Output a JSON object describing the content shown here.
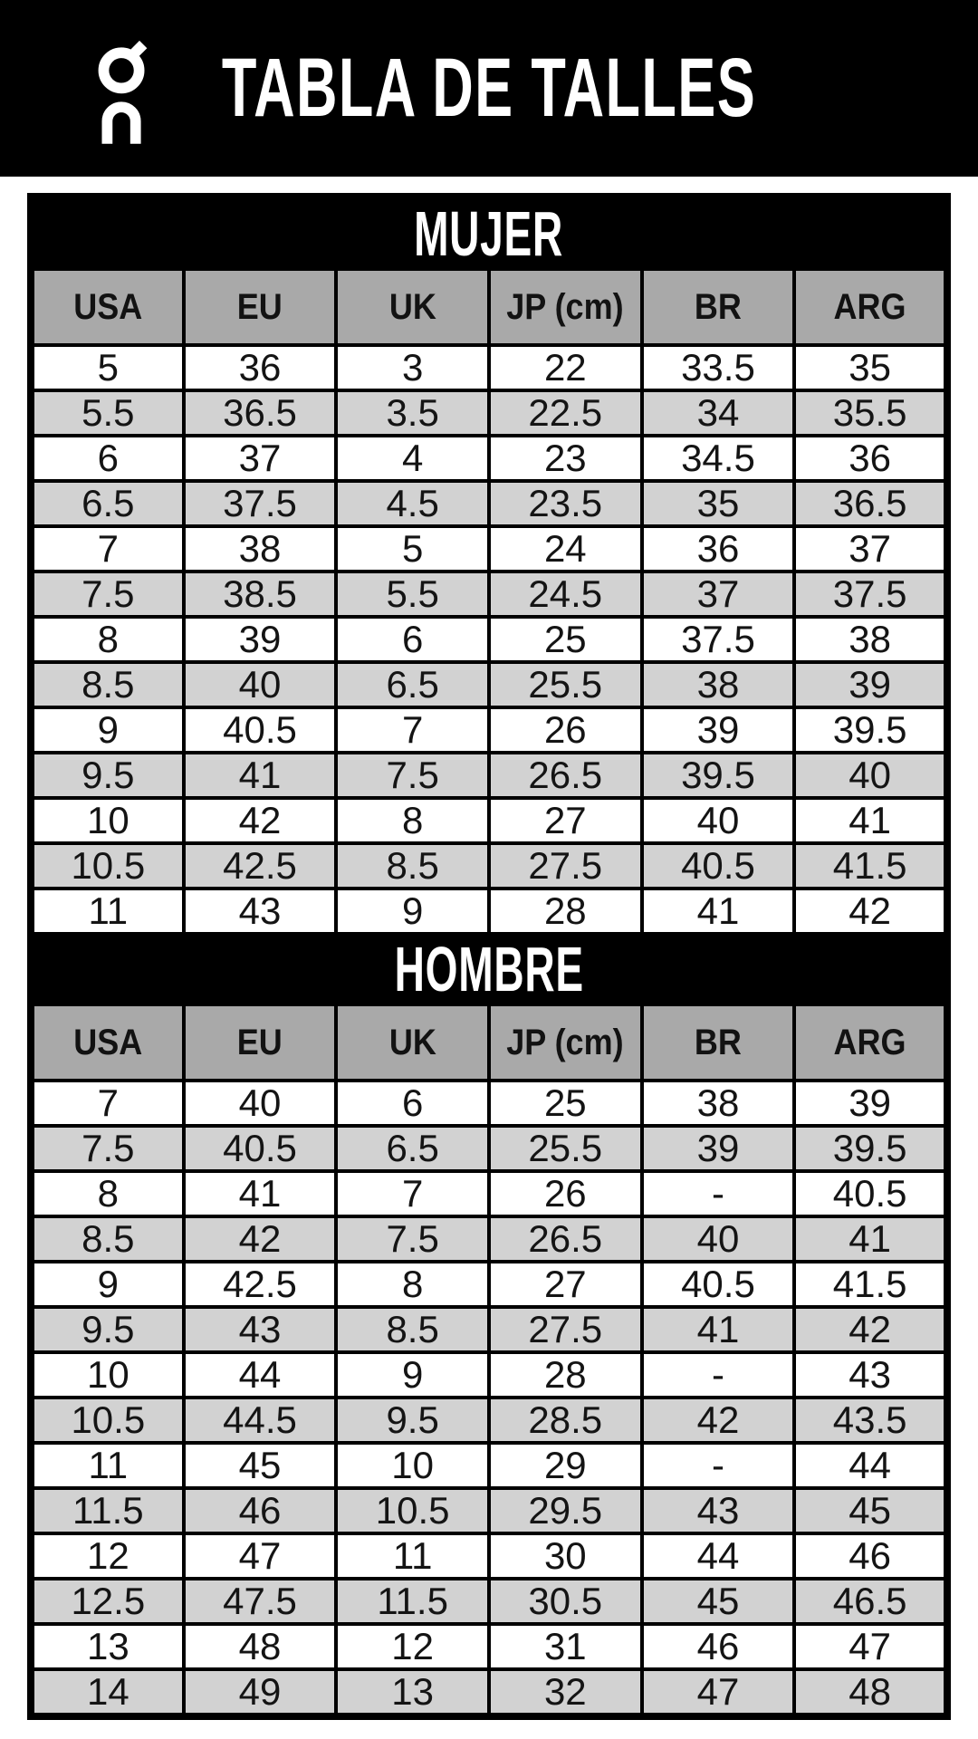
{
  "banner": {
    "title": "TABLA DE TALLES",
    "logo": "on-brand-logo"
  },
  "columns": [
    "USA",
    "EU",
    "UK",
    "JP (cm)",
    "BR",
    "ARG"
  ],
  "sections": [
    {
      "name": "MUJER",
      "rows": [
        [
          "5",
          "36",
          "3",
          "22",
          "33.5",
          "35"
        ],
        [
          "5.5",
          "36.5",
          "3.5",
          "22.5",
          "34",
          "35.5"
        ],
        [
          "6",
          "37",
          "4",
          "23",
          "34.5",
          "36"
        ],
        [
          "6.5",
          "37.5",
          "4.5",
          "23.5",
          "35",
          "36.5"
        ],
        [
          "7",
          "38",
          "5",
          "24",
          "36",
          "37"
        ],
        [
          "7.5",
          "38.5",
          "5.5",
          "24.5",
          "37",
          "37.5"
        ],
        [
          "8",
          "39",
          "6",
          "25",
          "37.5",
          "38"
        ],
        [
          "8.5",
          "40",
          "6.5",
          "25.5",
          "38",
          "39"
        ],
        [
          "9",
          "40.5",
          "7",
          "26",
          "39",
          "39.5"
        ],
        [
          "9.5",
          "41",
          "7.5",
          "26.5",
          "39.5",
          "40"
        ],
        [
          "10",
          "42",
          "8",
          "27",
          "40",
          "41"
        ],
        [
          "10.5",
          "42.5",
          "8.5",
          "27.5",
          "40.5",
          "41.5"
        ],
        [
          "11",
          "43",
          "9",
          "28",
          "41",
          "42"
        ]
      ]
    },
    {
      "name": "HOMBRE",
      "rows": [
        [
          "7",
          "40",
          "6",
          "25",
          "38",
          "39"
        ],
        [
          "7.5",
          "40.5",
          "6.5",
          "25.5",
          "39",
          "39.5"
        ],
        [
          "8",
          "41",
          "7",
          "26",
          "-",
          "40.5"
        ],
        [
          "8.5",
          "42",
          "7.5",
          "26.5",
          "40",
          "41"
        ],
        [
          "9",
          "42.5",
          "8",
          "27",
          "40.5",
          "41.5"
        ],
        [
          "9.5",
          "43",
          "8.5",
          "27.5",
          "41",
          "42"
        ],
        [
          "10",
          "44",
          "9",
          "28",
          "-",
          "43"
        ],
        [
          "10.5",
          "44.5",
          "9.5",
          "28.5",
          "42",
          "43.5"
        ],
        [
          "11",
          "45",
          "10",
          "29",
          "-",
          "44"
        ],
        [
          "11.5",
          "46",
          "10.5",
          "29.5",
          "43",
          "45"
        ],
        [
          "12",
          "47",
          "11",
          "30",
          "44",
          "46"
        ],
        [
          "12.5",
          "47.5",
          "11.5",
          "30.5",
          "45",
          "46.5"
        ],
        [
          "13",
          "48",
          "12",
          "31",
          "46",
          "47"
        ],
        [
          "14",
          "49",
          "13",
          "32",
          "47",
          "48"
        ]
      ]
    }
  ],
  "colors": {
    "banner_bg": "#000000",
    "band_bg": "#000000",
    "title_color": "#ffffff",
    "header_cell_bg": "#a9a9a9",
    "alt_row_bg": "#d2d2d2",
    "row_bg": "#ffffff",
    "border": "#000000"
  }
}
